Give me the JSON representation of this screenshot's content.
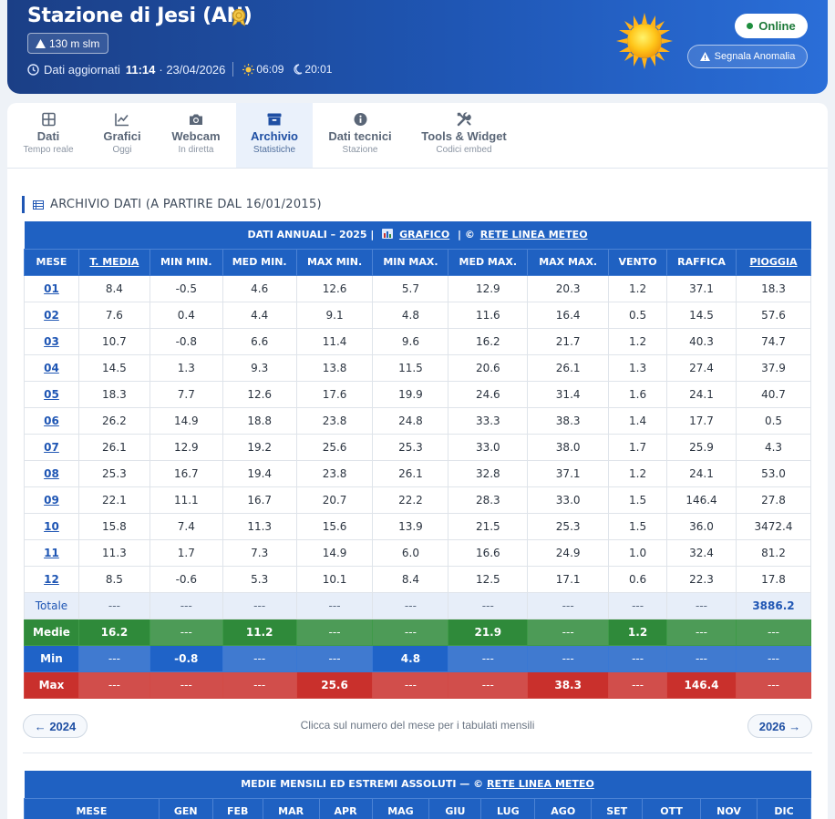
{
  "header": {
    "title": "Stazione di Jesi (AN)",
    "altitude": "130 m slm",
    "updated_label": "Dati aggiornati",
    "updated_time": "11:14",
    "updated_date": "· 23/04/2026",
    "sunrise": "06:09",
    "sunset": "20:01",
    "status": "Online",
    "report_button": "Segnala Anomalia",
    "colors": {
      "header_start": "#1b3f86",
      "header_end": "#2a6ed8",
      "online": "#1e8e3e"
    }
  },
  "tabs": [
    {
      "label": "Dati",
      "sub": "Tempo reale",
      "icon": "grid-icon"
    },
    {
      "label": "Grafici",
      "sub": "Oggi",
      "icon": "chart-line-icon"
    },
    {
      "label": "Webcam",
      "sub": "In diretta",
      "icon": "camera-icon"
    },
    {
      "label": "Archivio",
      "sub": "Statistiche",
      "icon": "archive-icon",
      "active": true
    },
    {
      "label": "Dati tecnici",
      "sub": "Stazione",
      "icon": "info-icon"
    },
    {
      "label": "Tools & Widget",
      "sub": "Codici embed",
      "icon": "tools-icon"
    }
  ],
  "section_title": "ARCHIVIO DATI (A PARTIRE DAL 16/01/2015)",
  "annual": {
    "caption_prefix": "DATI ANNUALI – 2025  |",
    "caption_chart": "GRAFICO",
    "caption_sep": "|  ©",
    "caption_link": "RETE LINEA METEO",
    "headers": [
      "MESE",
      "T. MEDIA",
      "MIN MIN.",
      "MED MIN.",
      "MAX MIN.",
      "MIN MAX.",
      "MED MAX.",
      "MAX MAX.",
      "VENTO",
      "RAFFICA",
      "PIOGGIA"
    ],
    "rows": [
      [
        "01",
        "8.4",
        "-0.5",
        "4.6",
        "12.6",
        "5.7",
        "12.9",
        "20.3",
        "1.2",
        "37.1",
        "18.3"
      ],
      [
        "02",
        "7.6",
        "0.4",
        "4.4",
        "9.1",
        "4.8",
        "11.6",
        "16.4",
        "0.5",
        "14.5",
        "57.6"
      ],
      [
        "03",
        "10.7",
        "-0.8",
        "6.6",
        "11.4",
        "9.6",
        "16.2",
        "21.7",
        "1.2",
        "40.3",
        "74.7"
      ],
      [
        "04",
        "14.5",
        "1.3",
        "9.3",
        "13.8",
        "11.5",
        "20.6",
        "26.1",
        "1.3",
        "27.4",
        "37.9"
      ],
      [
        "05",
        "18.3",
        "7.7",
        "12.6",
        "17.6",
        "19.9",
        "24.6",
        "31.4",
        "1.6",
        "24.1",
        "40.7"
      ],
      [
        "06",
        "26.2",
        "14.9",
        "18.8",
        "23.8",
        "24.8",
        "33.3",
        "38.3",
        "1.4",
        "17.7",
        "0.5"
      ],
      [
        "07",
        "26.1",
        "12.9",
        "19.2",
        "25.6",
        "25.3",
        "33.0",
        "38.0",
        "1.7",
        "25.9",
        "4.3"
      ],
      [
        "08",
        "25.3",
        "16.7",
        "19.4",
        "23.8",
        "26.1",
        "32.8",
        "37.1",
        "1.2",
        "24.1",
        "53.0"
      ],
      [
        "09",
        "22.1",
        "11.1",
        "16.7",
        "20.7",
        "22.2",
        "28.3",
        "33.0",
        "1.5",
        "146.4",
        "27.8"
      ],
      [
        "10",
        "15.8",
        "7.4",
        "11.3",
        "15.6",
        "13.9",
        "21.5",
        "25.3",
        "1.5",
        "36.0",
        "3472.4"
      ],
      [
        "11",
        "11.3",
        "1.7",
        "7.3",
        "14.9",
        "6.0",
        "16.6",
        "24.9",
        "1.0",
        "32.4",
        "81.2"
      ],
      [
        "12",
        "8.5",
        "-0.6",
        "5.3",
        "10.1",
        "8.4",
        "12.5",
        "17.1",
        "0.6",
        "22.3",
        "17.8"
      ]
    ],
    "totale": [
      "Totale",
      "---",
      "---",
      "---",
      "---",
      "---",
      "---",
      "---",
      "---",
      "---",
      "3886.2"
    ],
    "medie": [
      "Medie",
      "16.2",
      "---",
      "11.2",
      "---",
      "---",
      "21.9",
      "---",
      "1.2",
      "---",
      "---"
    ],
    "min": [
      "Min",
      "---",
      "-0.8",
      "---",
      "---",
      "4.8",
      "---",
      "---",
      "---",
      "---",
      "---"
    ],
    "max": [
      "Max",
      "---",
      "---",
      "---",
      "25.6",
      "---",
      "---",
      "38.3",
      "---",
      "146.4",
      "---"
    ]
  },
  "nav": {
    "prev": "← 2024",
    "hint": "Clicca sul numero del mese per i tabulati mensili",
    "next": "2026 →"
  },
  "monthly": {
    "caption_prefix": "MEDIE MENSILI ED ESTREMI ASSOLUTI — ©",
    "caption_link": "RETE LINEA METEO",
    "headers": [
      "MESE",
      "GEN",
      "FEB",
      "MAR",
      "APR",
      "MAG",
      "GIU",
      "LUG",
      "AGO",
      "SET",
      "OTT",
      "NOV",
      "DIC"
    ]
  }
}
